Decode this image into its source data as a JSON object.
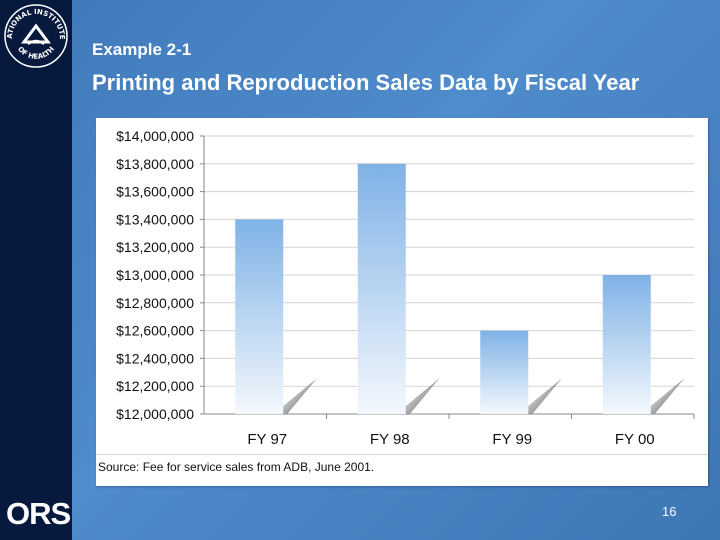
{
  "slide": {
    "subtitle": "Example 2-1",
    "title": "Printing and Reproduction Sales Data by Fiscal Year",
    "source": "Source:  Fee for service sales from ADB, June 2001.",
    "page_number": "16",
    "logo_top": "NATIONAL INSTITUTES",
    "logo_bottom": "OF HEALTH",
    "footer_logo": "ORS",
    "colors": {
      "background": "#4a86c6",
      "left_bar": "#071a3d",
      "bar_top": "#7fb2e6",
      "bar_bottom": "#f4f8fd"
    }
  },
  "chart_data": {
    "type": "bar",
    "categories": [
      "FY 97",
      "FY 98",
      "FY 99",
      "FY 00"
    ],
    "values": [
      13400000,
      13800000,
      12600000,
      13000000
    ],
    "ylim": [
      12000000,
      14000000
    ],
    "yticks": [
      12000000,
      12200000,
      12400000,
      12600000,
      12800000,
      13000000,
      13200000,
      13400000,
      13600000,
      13800000,
      14000000
    ],
    "ytick_labels": [
      "$12,000,000",
      "$12,200,000",
      "$12,400,000",
      "$12,600,000",
      "$12,800,000",
      "$13,000,000",
      "$13,200,000",
      "$13,400,000",
      "$13,600,000",
      "$13,800,000",
      "$14,000,000"
    ],
    "grid": true,
    "legend": "none",
    "title": "",
    "xlabel": "",
    "ylabel": ""
  }
}
